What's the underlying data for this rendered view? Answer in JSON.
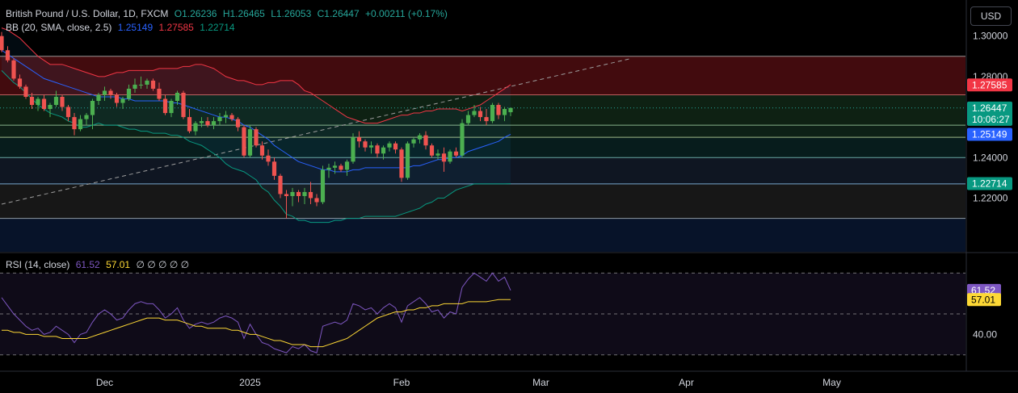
{
  "legend": {
    "symbol": "British Pound / U.S. Dollar, 1D, FXCM",
    "open": "O1.26236",
    "high": "H1.26465",
    "low": "L1.26053",
    "close": "C1.26447",
    "change": "+0.00211 (+0.17%)",
    "bb_label": "BB (20, SMA, close, 2.5)",
    "bb_basis": "1.25149",
    "bb_upper": "1.27585",
    "bb_lower": "1.22714",
    "rsi_label": "RSI (14, close)",
    "rsi_value": "61.52",
    "rsi_ma": "57.01",
    "rsi_extra": "∅ ∅ ∅ ∅ ∅"
  },
  "currency_button": "USD",
  "colors": {
    "up": "#26a69a",
    "down": "#ef5350",
    "bb_upper": "#f23645",
    "bb_basis": "#2962ff",
    "bb_lower": "#089981",
    "rsi": "#7e57c2",
    "rsi_ma": "#fdd835"
  },
  "chart_data": {
    "type": "candlestick",
    "price_axis": {
      "ticks": [
        "1.30000",
        "1.28000",
        "1.24000",
        "1.22000"
      ],
      "ylim": [
        1.1935,
        1.3178
      ]
    },
    "time_axis": {
      "ticks": [
        "Dec",
        "2025",
        "Feb",
        "Mar",
        "Apr",
        "May"
      ]
    },
    "price_labels": {
      "upper": "1.27585",
      "close": "1.26447",
      "countdown": "10:06:27",
      "basis": "1.25149",
      "lower": "1.22714"
    },
    "horizontal_levels": [
      1.29,
      1.271,
      1.256,
      1.25,
      1.24,
      1.227,
      1.21
    ],
    "trendline": {
      "from": [
        0,
        1.217
      ],
      "to": [
        104,
        1.289
      ]
    },
    "candles": [
      [
        1.3,
        1.302,
        1.292,
        1.293
      ],
      [
        1.293,
        1.295,
        1.287,
        1.288
      ],
      [
        1.288,
        1.289,
        1.278,
        1.279
      ],
      [
        1.279,
        1.281,
        1.274,
        1.275
      ],
      [
        1.275,
        1.276,
        1.269,
        1.27
      ],
      [
        1.27,
        1.272,
        1.264,
        1.266
      ],
      [
        1.266,
        1.27,
        1.263,
        1.269
      ],
      [
        1.269,
        1.271,
        1.263,
        1.264
      ],
      [
        1.264,
        1.267,
        1.26,
        1.266
      ],
      [
        1.266,
        1.273,
        1.265,
        1.27
      ],
      [
        1.27,
        1.271,
        1.263,
        1.265
      ],
      [
        1.265,
        1.266,
        1.258,
        1.26
      ],
      [
        1.26,
        1.262,
        1.251,
        1.254
      ],
      [
        1.254,
        1.261,
        1.253,
        1.259
      ],
      [
        1.259,
        1.262,
        1.256,
        1.261
      ],
      [
        1.261,
        1.269,
        1.254,
        1.268
      ],
      [
        1.268,
        1.272,
        1.266,
        1.271
      ],
      [
        1.271,
        1.275,
        1.268,
        1.273
      ],
      [
        1.273,
        1.274,
        1.269,
        1.271
      ],
      [
        1.271,
        1.272,
        1.265,
        1.267
      ],
      [
        1.267,
        1.27,
        1.264,
        1.269
      ],
      [
        1.269,
        1.276,
        1.268,
        1.274
      ],
      [
        1.274,
        1.279,
        1.272,
        1.276
      ],
      [
        1.276,
        1.28,
        1.274,
        1.276
      ],
      [
        1.276,
        1.279,
        1.274,
        1.278
      ],
      [
        1.278,
        1.279,
        1.273,
        1.274
      ],
      [
        1.274,
        1.277,
        1.268,
        1.269
      ],
      [
        1.269,
        1.271,
        1.261,
        1.262
      ],
      [
        1.262,
        1.269,
        1.26,
        1.268
      ],
      [
        1.268,
        1.273,
        1.266,
        1.272
      ],
      [
        1.272,
        1.273,
        1.259,
        1.26
      ],
      [
        1.26,
        1.264,
        1.252,
        1.253
      ],
      [
        1.253,
        1.258,
        1.251,
        1.257
      ],
      [
        1.257,
        1.26,
        1.255,
        1.258
      ],
      [
        1.258,
        1.26,
        1.255,
        1.256
      ],
      [
        1.256,
        1.26,
        1.254,
        1.258
      ],
      [
        1.258,
        1.262,
        1.256,
        1.26
      ],
      [
        1.26,
        1.263,
        1.257,
        1.261
      ],
      [
        1.261,
        1.262,
        1.258,
        1.259
      ],
      [
        1.259,
        1.26,
        1.253,
        1.255
      ],
      [
        1.255,
        1.256,
        1.24,
        1.241
      ],
      [
        1.241,
        1.256,
        1.24,
        1.254
      ],
      [
        1.254,
        1.255,
        1.245,
        1.246
      ],
      [
        1.246,
        1.248,
        1.239,
        1.241
      ],
      [
        1.241,
        1.244,
        1.236,
        1.238
      ],
      [
        1.238,
        1.24,
        1.229,
        1.231
      ],
      [
        1.231,
        1.232,
        1.22,
        1.222
      ],
      [
        1.222,
        1.224,
        1.21,
        1.221
      ],
      [
        1.221,
        1.225,
        1.216,
        1.223
      ],
      [
        1.223,
        1.224,
        1.218,
        1.221
      ],
      [
        1.221,
        1.225,
        1.217,
        1.223
      ],
      [
        1.223,
        1.228,
        1.217,
        1.22
      ],
      [
        1.22,
        1.222,
        1.216,
        1.218
      ],
      [
        1.218,
        1.236,
        1.217,
        1.234
      ],
      [
        1.234,
        1.237,
        1.23,
        1.235
      ],
      [
        1.235,
        1.238,
        1.232,
        1.236
      ],
      [
        1.236,
        1.237,
        1.233,
        1.234
      ],
      [
        1.234,
        1.239,
        1.231,
        1.238
      ],
      [
        1.238,
        1.252,
        1.237,
        1.25
      ],
      [
        1.25,
        1.253,
        1.245,
        1.248
      ],
      [
        1.248,
        1.249,
        1.243,
        1.245
      ],
      [
        1.245,
        1.248,
        1.242,
        1.246
      ],
      [
        1.246,
        1.247,
        1.24,
        1.242
      ],
      [
        1.242,
        1.246,
        1.239,
        1.245
      ],
      [
        1.245,
        1.248,
        1.243,
        1.247
      ],
      [
        1.247,
        1.248,
        1.242,
        1.244
      ],
      [
        1.244,
        1.245,
        1.228,
        1.23
      ],
      [
        1.23,
        1.248,
        1.229,
        1.247
      ],
      [
        1.247,
        1.25,
        1.245,
        1.249
      ],
      [
        1.249,
        1.252,
        1.247,
        1.251
      ],
      [
        1.251,
        1.253,
        1.244,
        1.246
      ],
      [
        1.246,
        1.247,
        1.24,
        1.241
      ],
      [
        1.241,
        1.244,
        1.239,
        1.242
      ],
      [
        1.242,
        1.245,
        1.233,
        1.238
      ],
      [
        1.238,
        1.244,
        1.237,
        1.243
      ],
      [
        1.243,
        1.245,
        1.24,
        1.241
      ],
      [
        1.241,
        1.259,
        1.24,
        1.257
      ],
      [
        1.257,
        1.263,
        1.256,
        1.261
      ],
      [
        1.261,
        1.266,
        1.26,
        1.263
      ],
      [
        1.263,
        1.265,
        1.258,
        1.26
      ],
      [
        1.26,
        1.264,
        1.256,
        1.258
      ],
      [
        1.258,
        1.267,
        1.257,
        1.266
      ],
      [
        1.266,
        1.267,
        1.259,
        1.261
      ],
      [
        1.261,
        1.265,
        1.258,
        1.264
      ],
      [
        1.2624,
        1.2647,
        1.2605,
        1.2645
      ]
    ],
    "bb_upper": [
      1.304,
      1.303,
      1.301,
      1.299,
      1.296,
      1.293,
      1.29,
      1.288,
      1.286,
      1.286,
      1.286,
      1.285,
      1.284,
      1.283,
      1.282,
      1.281,
      1.28,
      1.28,
      1.281,
      1.282,
      1.282,
      1.283,
      1.283,
      1.283,
      1.283,
      1.283,
      1.284,
      1.284,
      1.284,
      1.284,
      1.285,
      1.285,
      1.286,
      1.286,
      1.285,
      1.284,
      1.282,
      1.28,
      1.279,
      1.278,
      1.278,
      1.277,
      1.276,
      1.276,
      1.277,
      1.277,
      1.278,
      1.278,
      1.278,
      1.276,
      1.273,
      1.272,
      1.27,
      1.268,
      1.266,
      1.264,
      1.262,
      1.26,
      1.259,
      1.258,
      1.257,
      1.257,
      1.257,
      1.258,
      1.259,
      1.26,
      1.261,
      1.261,
      1.262,
      1.262,
      1.263,
      1.263,
      1.264,
      1.264,
      1.264,
      1.264,
      1.263,
      1.264,
      1.265,
      1.266,
      1.268,
      1.27,
      1.272,
      1.274,
      1.276
    ],
    "bb_basis": [
      1.293,
      1.291,
      1.289,
      1.287,
      1.285,
      1.283,
      1.281,
      1.279,
      1.278,
      1.277,
      1.276,
      1.275,
      1.274,
      1.273,
      1.272,
      1.271,
      1.27,
      1.27,
      1.27,
      1.27,
      1.269,
      1.269,
      1.268,
      1.268,
      1.268,
      1.268,
      1.268,
      1.268,
      1.267,
      1.267,
      1.266,
      1.265,
      1.264,
      1.263,
      1.262,
      1.261,
      1.26,
      1.26,
      1.259,
      1.258,
      1.256,
      1.255,
      1.253,
      1.251,
      1.249,
      1.246,
      1.244,
      1.242,
      1.24,
      1.238,
      1.237,
      1.236,
      1.235,
      1.234,
      1.234,
      1.233,
      1.233,
      1.233,
      1.234,
      1.234,
      1.235,
      1.235,
      1.235,
      1.235,
      1.235,
      1.235,
      1.235,
      1.235,
      1.236,
      1.236,
      1.237,
      1.238,
      1.239,
      1.239,
      1.24,
      1.24,
      1.241,
      1.243,
      1.244,
      1.245,
      1.246,
      1.247,
      1.248,
      1.25,
      1.2515
    ],
    "bb_lower": [
      1.283,
      1.28,
      1.277,
      1.275,
      1.272,
      1.269,
      1.266,
      1.264,
      1.262,
      1.261,
      1.26,
      1.258,
      1.257,
      1.255,
      1.255,
      1.256,
      1.257,
      1.256,
      1.256,
      1.256,
      1.255,
      1.254,
      1.254,
      1.253,
      1.253,
      1.252,
      1.252,
      1.252,
      1.251,
      1.251,
      1.25,
      1.248,
      1.247,
      1.246,
      1.244,
      1.242,
      1.24,
      1.237,
      1.235,
      1.234,
      1.233,
      1.231,
      1.229,
      1.225,
      1.223,
      1.219,
      1.216,
      1.212,
      1.211,
      1.209,
      1.209,
      1.208,
      1.208,
      1.208,
      1.208,
      1.209,
      1.209,
      1.21,
      1.21,
      1.21,
      1.211,
      1.211,
      1.211,
      1.211,
      1.211,
      1.211,
      1.212,
      1.213,
      1.214,
      1.215,
      1.217,
      1.218,
      1.22,
      1.22,
      1.222,
      1.224,
      1.225,
      1.226,
      1.227,
      1.227,
      1.227,
      1.227,
      1.227,
      1.227,
      1.2271
    ],
    "rsi_axis": {
      "ticks": [
        "40.00"
      ]
    },
    "rsi": [
      58,
      54,
      50,
      47,
      44,
      42,
      43,
      40,
      41,
      44,
      42,
      40,
      36,
      40,
      41,
      46,
      50,
      52,
      50,
      47,
      48,
      52,
      55,
      56,
      55,
      55,
      52,
      48,
      50,
      53,
      47,
      43,
      45,
      46,
      45,
      46,
      48,
      49,
      48,
      46,
      38,
      45,
      40,
      36,
      35,
      33,
      32,
      31,
      34,
      33,
      35,
      32,
      31,
      44,
      45,
      46,
      45,
      47,
      55,
      54,
      52,
      53,
      50,
      53,
      55,
      53,
      46,
      54,
      56,
      58,
      55,
      51,
      52,
      48,
      51,
      50,
      63,
      67,
      70,
      68,
      66,
      70,
      66,
      68,
      61.52
    ],
    "rsi_ma": [
      42,
      42,
      41,
      41,
      40,
      40,
      40,
      39,
      39,
      39,
      38,
      38,
      38,
      38,
      38,
      39,
      40,
      41,
      42,
      43,
      44,
      45,
      46,
      47,
      48,
      48,
      48,
      47,
      47,
      47,
      46,
      45,
      44,
      44,
      43,
      43,
      43,
      43,
      42,
      42,
      41,
      40,
      40,
      39,
      38,
      37,
      37,
      36,
      35,
      35,
      35,
      34,
      34,
      34,
      35,
      36,
      37,
      38,
      40,
      42,
      44,
      46,
      48,
      49,
      50,
      51,
      51,
      52,
      52,
      53,
      53,
      54,
      54,
      55,
      55,
      55,
      55,
      56,
      56,
      56,
      56,
      56.5,
      57,
      57,
      57.01
    ]
  }
}
